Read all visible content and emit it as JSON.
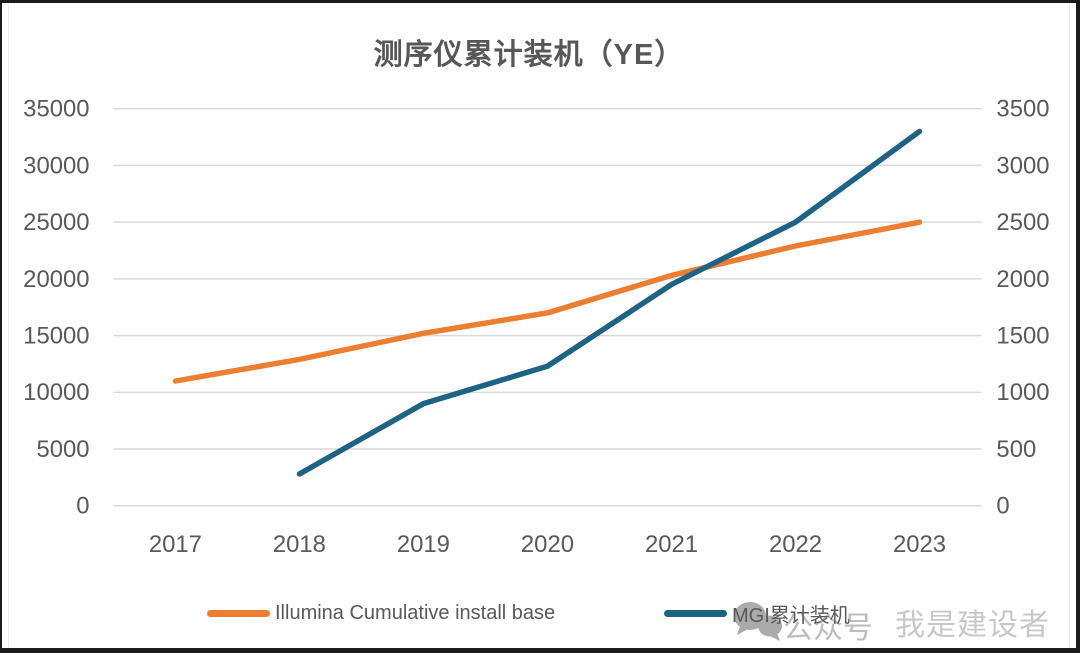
{
  "watermark": {
    "bubbles_icon": "chat-bubbles",
    "text1": "公众号",
    "text2": "我是建设者",
    "color1": "#bdbdbd",
    "color2": "#c8c8c8",
    "bubble_color": "#ababab"
  },
  "chart_data": {
    "type": "line",
    "title": "测序仪累计装机（YE）",
    "categories": [
      "2017",
      "2018",
      "2019",
      "2020",
      "2021",
      "2022",
      "2023"
    ],
    "series": [
      {
        "name": "Illumina Cumulative install base",
        "axis": "left",
        "color": "#ED7D31",
        "values": [
          11000,
          12900,
          15200,
          17000,
          20300,
          22900,
          25000
        ]
      },
      {
        "name": "MGI累计装机",
        "axis": "right",
        "color": "#1E6284",
        "values": [
          null,
          280,
          900,
          1230,
          1950,
          2500,
          3300
        ]
      }
    ],
    "left_axis": {
      "min": 0,
      "max": 35000,
      "step": 5000,
      "ticks": [
        35000,
        30000,
        25000,
        20000,
        15000,
        10000,
        5000,
        0
      ]
    },
    "right_axis": {
      "min": 0,
      "max": 3500,
      "step": 500,
      "ticks": [
        3500,
        3000,
        2500,
        2000,
        1500,
        1000,
        500,
        0
      ]
    },
    "grid": true,
    "gridline_color": "#d9d9d9",
    "tick_label_color": "#595959",
    "legend_position": "bottom"
  }
}
